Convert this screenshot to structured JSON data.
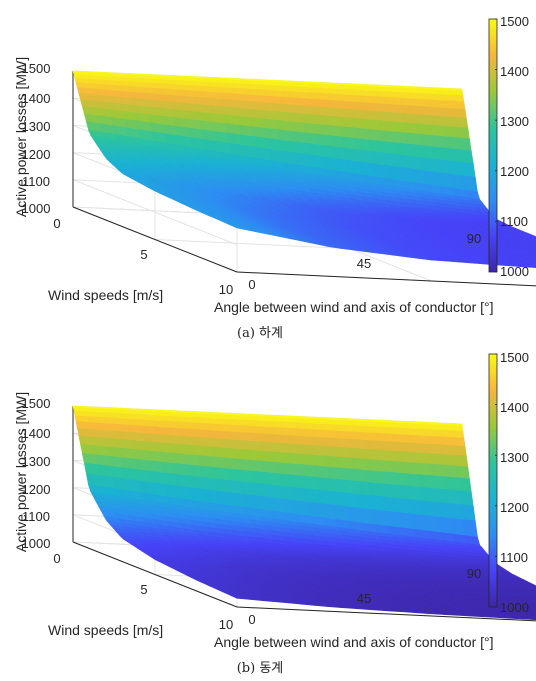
{
  "chart_data": [
    {
      "type": "surface",
      "caption": "(a) 하계",
      "zlabel": "Active power losses [MW]",
      "xlabel": "Wind speeds [m/s]",
      "ylabel": "Angle between wind and axis of conductor [°]",
      "x_ticks": [
        "0",
        "5",
        "10"
      ],
      "y_ticks": [
        "0",
        "45",
        "90"
      ],
      "z_ticks": [
        "1000",
        "1100",
        "1200",
        "1300",
        "1400",
        "1500"
      ],
      "colorbar_ticks": [
        "1000",
        "1100",
        "1200",
        "1300",
        "1400",
        "1500"
      ],
      "xlim": [
        0,
        10
      ],
      "ylim": [
        0,
        90
      ],
      "zlim": [
        1000,
        1500
      ],
      "clim": [
        1000,
        1500
      ],
      "colormap": [
        "#3e26a8",
        "#4743f8",
        "#2d8ef2",
        "#1ab2d2",
        "#2dc59c",
        "#9bc938",
        "#f7b63c",
        "#f9fb15"
      ],
      "grid": true,
      "surface_z": [
        [
          1500,
          1500,
          1500,
          1500,
          1500
        ],
        [
          1295,
          1248,
          1203,
          1162,
          1124
        ],
        [
          1228,
          1178,
          1131,
          1092,
          1072
        ],
        [
          1195,
          1141,
          1098,
          1074,
          1066
        ],
        [
          1178,
          1122,
          1086,
          1070,
          1065
        ],
        [
          1168,
          1111,
          1080,
          1068,
          1065
        ],
        [
          1162,
          1106,
          1077,
          1067,
          1065
        ]
      ],
      "surface_x": [
        0,
        1,
        2,
        3,
        5,
        7.5,
        10
      ],
      "surface_y": [
        0,
        22.5,
        45,
        67.5,
        90
      ]
    },
    {
      "type": "surface",
      "caption": "(b) 동계",
      "zlabel": "Active power losses [MW]",
      "xlabel": "Wind speeds [m/s]",
      "ylabel": "Angle between wind and axis of conductor [°]",
      "x_ticks": [
        "0",
        "5",
        "10"
      ],
      "y_ticks": [
        "0",
        "45",
        "90"
      ],
      "z_ticks": [
        "1000",
        "1100",
        "1200",
        "1300",
        "1400",
        "1500"
      ],
      "colorbar_ticks": [
        "1000",
        "1100",
        "1200",
        "1300",
        "1400",
        "1500"
      ],
      "xlim": [
        0,
        10
      ],
      "ylim": [
        0,
        90
      ],
      "zlim": [
        1000,
        1500
      ],
      "clim": [
        1000,
        1500
      ],
      "colormap": [
        "#3e26a8",
        "#4743f8",
        "#2d8ef2",
        "#1ab2d2",
        "#2dc59c",
        "#9bc938",
        "#f7b63c",
        "#f9fb15"
      ],
      "grid": true,
      "surface_z": [
        [
          1500,
          1500,
          1500,
          1500,
          1500
        ],
        [
          1218,
          1178,
          1145,
          1113,
          1085
        ],
        [
          1130,
          1093,
          1068,
          1050,
          1038
        ],
        [
          1085,
          1055,
          1038,
          1028,
          1022
        ],
        [
          1055,
          1032,
          1020,
          1013,
          1010
        ],
        [
          1040,
          1022,
          1012,
          1007,
          1005
        ],
        [
          1032,
          1016,
          1008,
          1004,
          1002
        ]
      ],
      "surface_x": [
        0,
        1,
        2,
        3,
        5,
        7.5,
        10
      ],
      "surface_y": [
        0,
        22.5,
        45,
        67.5,
        90
      ]
    }
  ]
}
